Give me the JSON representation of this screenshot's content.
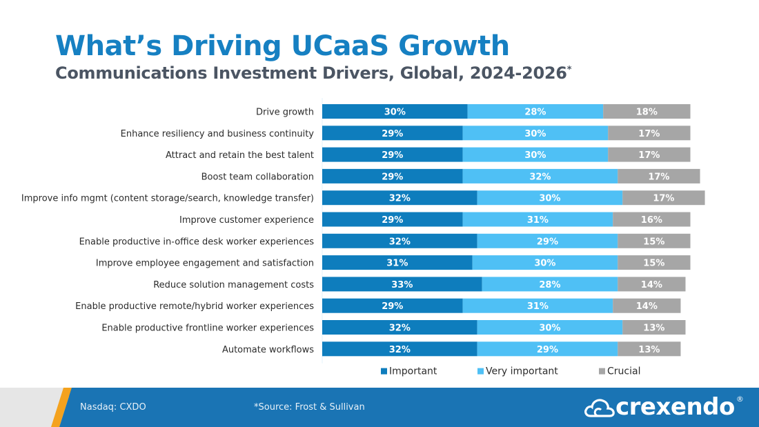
{
  "header": {
    "title": "What’s Driving UCaaS Growth",
    "subtitle": "Communications Investment Drivers, Global, 2024-2026",
    "subtitle_mark": "*"
  },
  "colors": {
    "important": "#0e7dbd",
    "very_important": "#4fc0f5",
    "crucial": "#a6a6a6",
    "title": "#1680c2",
    "subtitle": "#4b5563",
    "footer": "#1a74b4",
    "footer_accent": "#f4a21e"
  },
  "chart_data": {
    "type": "bar",
    "orientation": "horizontal",
    "stacked": true,
    "title": "Communications Investment Drivers, Global, 2024-2026",
    "xlabel": "",
    "ylabel": "",
    "grid": false,
    "legend_position": "bottom",
    "xlim": [
      0,
      100
    ],
    "categories": [
      "Drive growth",
      "Enhance resiliency and business continuity",
      "Attract and retain the best talent",
      "Boost team collaboration",
      "Improve info mgmt (content storage/search, knowledge transfer)",
      "Improve customer experience",
      "Enable productive in-office desk worker experiences",
      "Improve employee engagement and satisfaction",
      "Reduce solution management costs",
      "Enable productive remote/hybrid worker experiences",
      "Enable productive frontline worker experiences",
      "Automate workflows"
    ],
    "series": [
      {
        "name": "Important",
        "values": [
          30,
          29,
          29,
          29,
          32,
          29,
          32,
          31,
          33,
          29,
          32,
          32
        ]
      },
      {
        "name": "Very important",
        "values": [
          28,
          30,
          30,
          32,
          30,
          31,
          29,
          30,
          28,
          31,
          30,
          29
        ]
      },
      {
        "name": "Crucial",
        "values": [
          18,
          17,
          17,
          17,
          17,
          16,
          15,
          15,
          14,
          14,
          13,
          13
        ]
      }
    ],
    "value_suffix": "%"
  },
  "footer": {
    "ticker": "Nasdaq: CXDO",
    "source": "*Source: Frost & Sullivan",
    "logo_text": "crexendo",
    "logo_mark": "®"
  }
}
